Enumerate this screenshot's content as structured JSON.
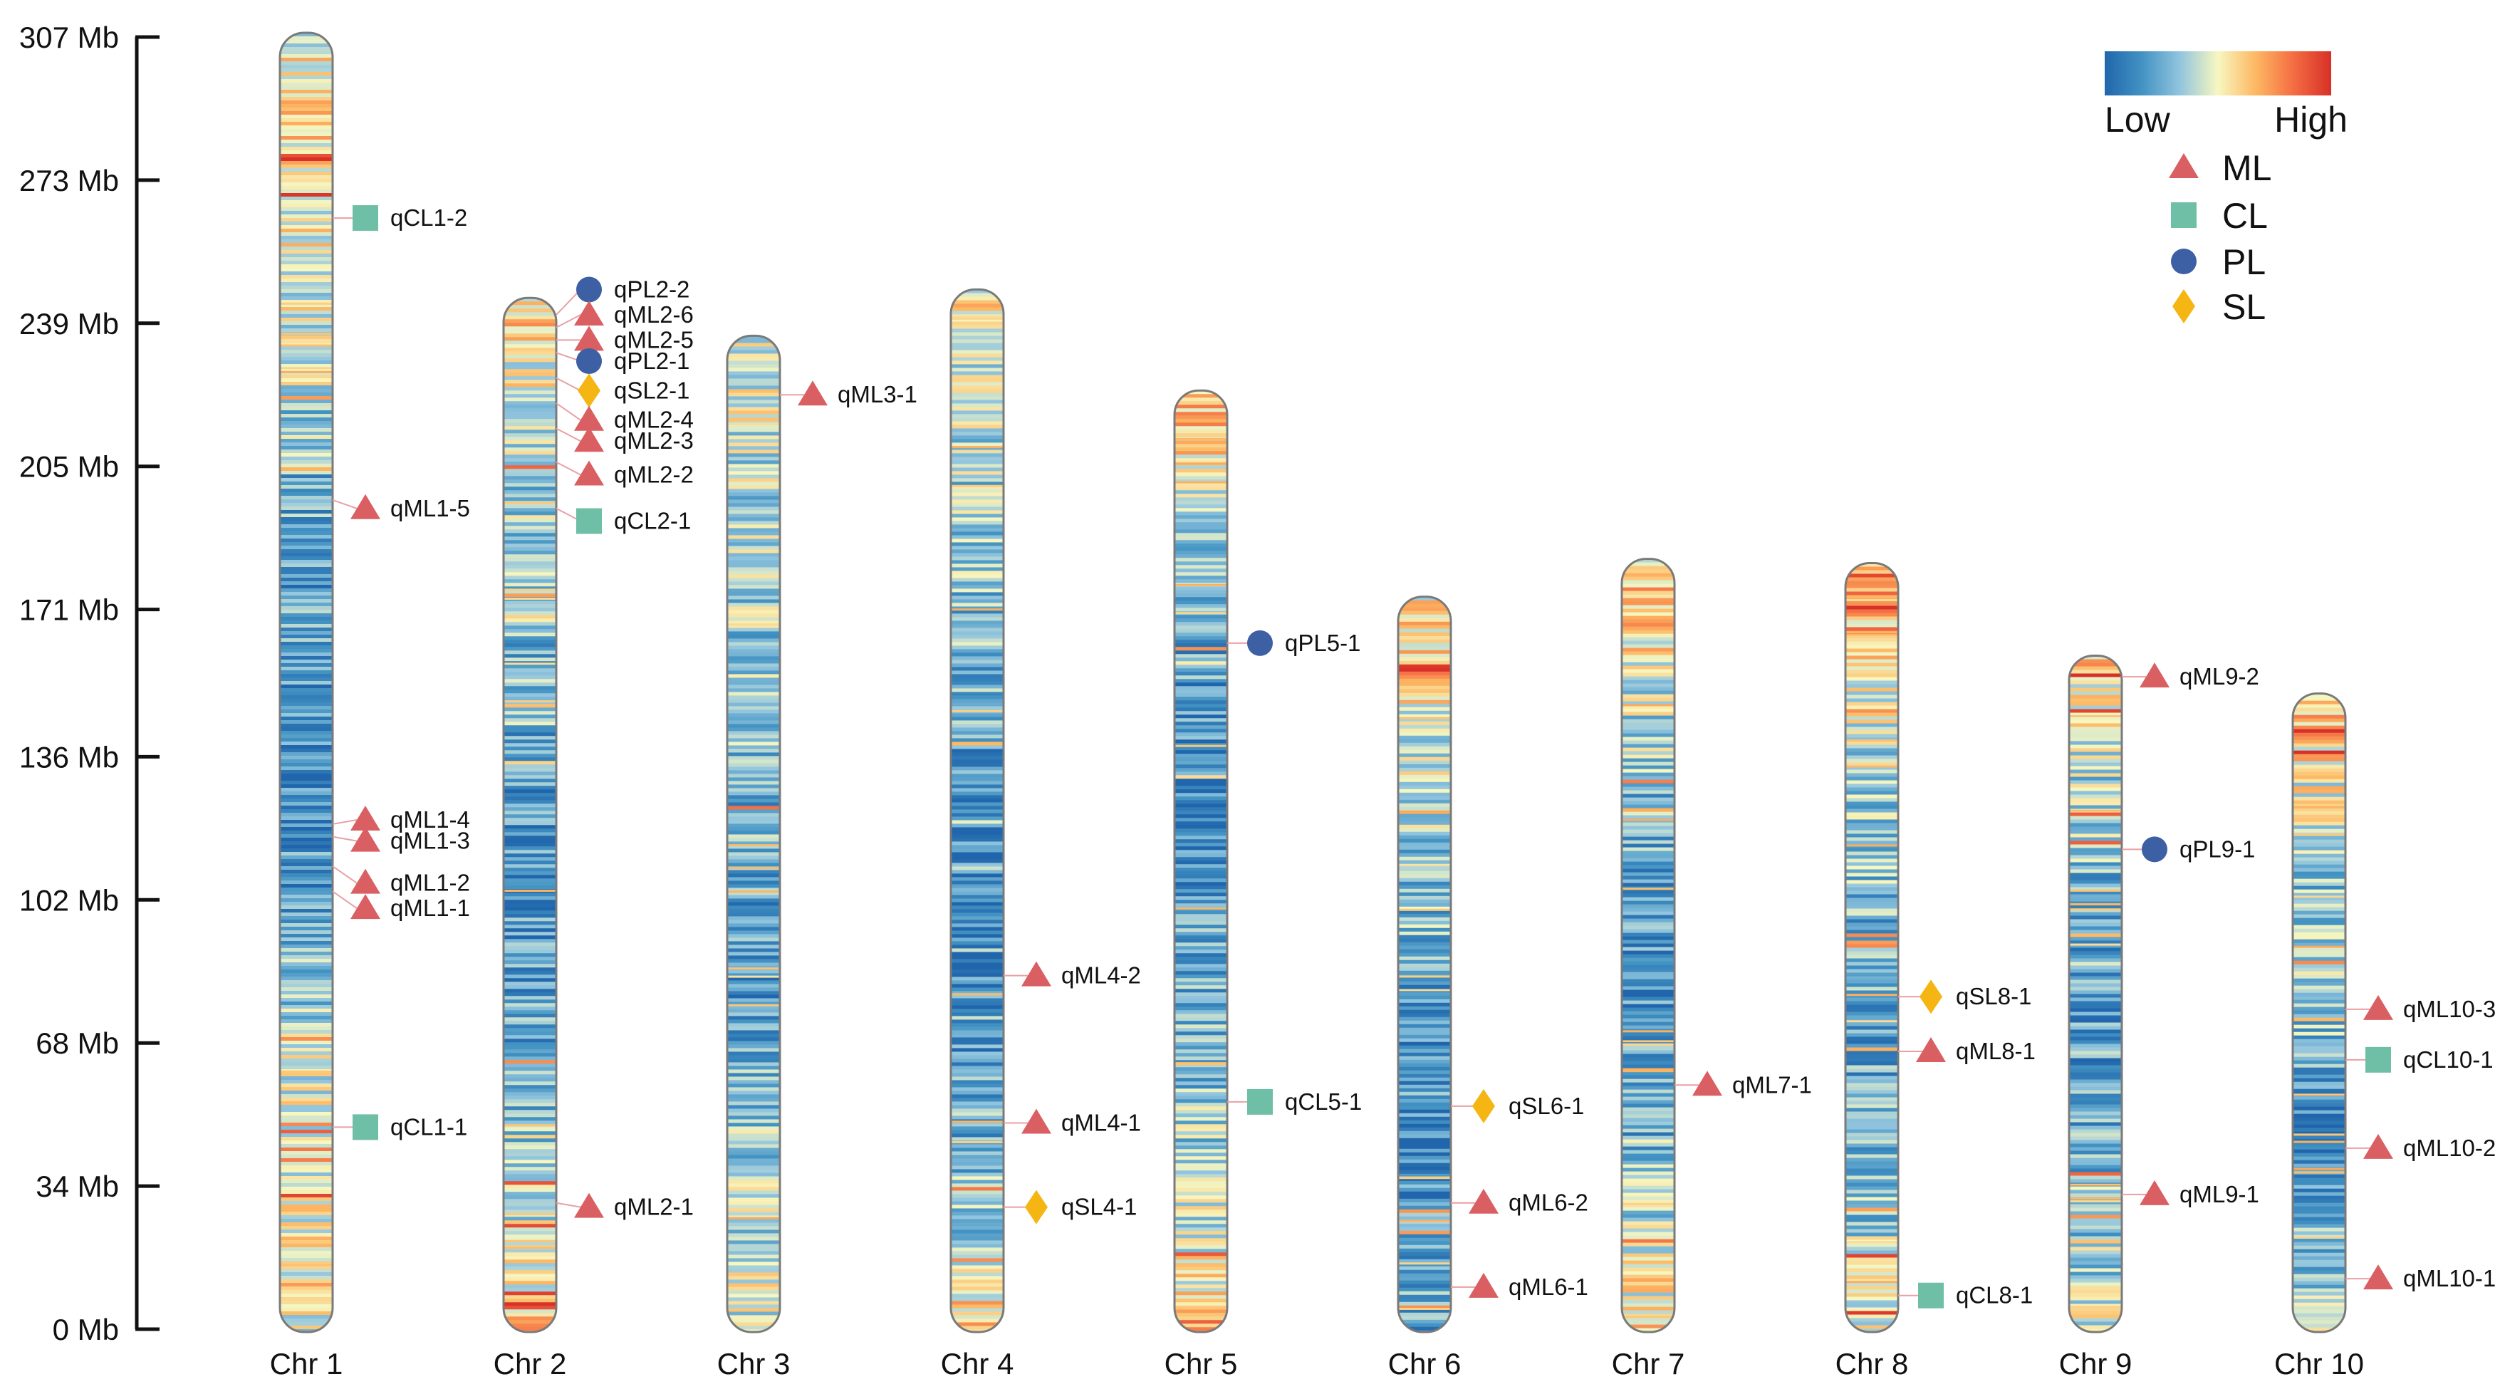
{
  "chart_data": {
    "type": "chromosome_density_map",
    "y_unit": "Mb",
    "ylim": [
      0,
      307
    ],
    "y_ticks": [
      {
        "value": 307,
        "label": "307 Mb"
      },
      {
        "value": 273,
        "label": "273 Mb"
      },
      {
        "value": 239,
        "label": "239 Mb"
      },
      {
        "value": 205,
        "label": "205 Mb"
      },
      {
        "value": 171,
        "label": "171 Mb"
      },
      {
        "value": 136,
        "label": "136 Mb"
      },
      {
        "value": 102,
        "label": "102 Mb"
      },
      {
        "value": 68,
        "label": "68 Mb"
      },
      {
        "value": 34,
        "label": "34 Mb"
      },
      {
        "value": 0,
        "label": "0 Mb"
      }
    ],
    "density_legend": {
      "low_label": "Low",
      "high_label": "High",
      "colors": [
        "#2166ac",
        "#4393c3",
        "#92c5de",
        "#f7f7c0",
        "#fdb863",
        "#f46d43",
        "#d73027"
      ]
    },
    "trait_legend": [
      {
        "trait": "ML",
        "shape": "triangle",
        "color": "#d95f63"
      },
      {
        "trait": "CL",
        "shape": "square",
        "color": "#6fbfa7"
      },
      {
        "trait": "PL",
        "shape": "circle",
        "color": "#3d5fa3"
      },
      {
        "trait": "SL",
        "shape": "diamond",
        "color": "#f5b512"
      }
    ],
    "chromosomes": [
      {
        "name": "Chr 1",
        "length": 307,
        "qtls": [
          {
            "label": "qCL1-2",
            "trait": "CL",
            "position": 264,
            "marker_y": 264
          },
          {
            "label": "qML1-5",
            "trait": "ML",
            "position": 197,
            "marker_y": 195
          },
          {
            "label": "qML1-4",
            "trait": "ML",
            "position": 120,
            "marker_y": 121
          },
          {
            "label": "qML1-3",
            "trait": "ML",
            "position": 117,
            "marker_y": 116
          },
          {
            "label": "qML1-2",
            "trait": "ML",
            "position": 110,
            "marker_y": 106
          },
          {
            "label": "qML1-1",
            "trait": "ML",
            "position": 104,
            "marker_y": 100
          },
          {
            "label": "qCL1-1",
            "trait": "CL",
            "position": 48,
            "marker_y": 48
          }
        ]
      },
      {
        "name": "Chr 2",
        "length": 244,
        "qtls": [
          {
            "label": "qPL2-2",
            "trait": "PL",
            "position": 241,
            "marker_y": 247
          },
          {
            "label": "qML2-6",
            "trait": "ML",
            "position": 238,
            "marker_y": 241
          },
          {
            "label": "qML2-5",
            "trait": "ML",
            "position": 235,
            "marker_y": 235
          },
          {
            "label": "qPL2-1",
            "trait": "PL",
            "position": 232,
            "marker_y": 230
          },
          {
            "label": "qSL2-1",
            "trait": "SL",
            "position": 226,
            "marker_y": 223
          },
          {
            "label": "qML2-4",
            "trait": "ML",
            "position": 220,
            "marker_y": 216
          },
          {
            "label": "qML2-3",
            "trait": "ML",
            "position": 214,
            "marker_y": 211
          },
          {
            "label": "qML2-2",
            "trait": "ML",
            "position": 206,
            "marker_y": 203
          },
          {
            "label": "qCL2-1",
            "trait": "CL",
            "position": 195,
            "marker_y": 192
          },
          {
            "label": "qML2-1",
            "trait": "ML",
            "position": 30,
            "marker_y": 29
          }
        ]
      },
      {
        "name": "Chr 3",
        "length": 235,
        "qtls": [
          {
            "label": "qML3-1",
            "trait": "ML",
            "position": 222,
            "marker_y": 222
          }
        ]
      },
      {
        "name": "Chr 4",
        "length": 246,
        "qtls": [
          {
            "label": "qML4-2",
            "trait": "ML",
            "position": 84,
            "marker_y": 84
          },
          {
            "label": "qML4-1",
            "trait": "ML",
            "position": 49,
            "marker_y": 49
          },
          {
            "label": "qSL4-1",
            "trait": "SL",
            "position": 29,
            "marker_y": 29
          }
        ]
      },
      {
        "name": "Chr 5",
        "length": 222,
        "qtls": [
          {
            "label": "qPL5-1",
            "trait": "PL",
            "position": 163,
            "marker_y": 163
          },
          {
            "label": "qCL5-1",
            "trait": "CL",
            "position": 54,
            "marker_y": 54
          }
        ]
      },
      {
        "name": "Chr 6",
        "length": 173,
        "qtls": [
          {
            "label": "qSL6-1",
            "trait": "SL",
            "position": 53,
            "marker_y": 53
          },
          {
            "label": "qML6-2",
            "trait": "ML",
            "position": 30,
            "marker_y": 30
          },
          {
            "label": "qML6-1",
            "trait": "ML",
            "position": 10,
            "marker_y": 10
          }
        ]
      },
      {
        "name": "Chr 7",
        "length": 182,
        "qtls": [
          {
            "label": "qML7-1",
            "trait": "ML",
            "position": 58,
            "marker_y": 58
          }
        ]
      },
      {
        "name": "Chr 8",
        "length": 181,
        "qtls": [
          {
            "label": "qSL8-1",
            "trait": "SL",
            "position": 79,
            "marker_y": 79
          },
          {
            "label": "qML8-1",
            "trait": "ML",
            "position": 66,
            "marker_y": 66
          },
          {
            "label": "qCL8-1",
            "trait": "CL",
            "position": 8,
            "marker_y": 8
          }
        ]
      },
      {
        "name": "Chr 9",
        "length": 159,
        "qtls": [
          {
            "label": "qML9-2",
            "trait": "ML",
            "position": 155,
            "marker_y": 155
          },
          {
            "label": "qPL9-1",
            "trait": "PL",
            "position": 114,
            "marker_y": 114
          },
          {
            "label": "qML9-1",
            "trait": "ML",
            "position": 32,
            "marker_y": 32
          }
        ]
      },
      {
        "name": "Chr 10",
        "length": 150,
        "qtls": [
          {
            "label": "qML10-3",
            "trait": "ML",
            "position": 76,
            "marker_y": 76
          },
          {
            "label": "qCL10-1",
            "trait": "CL",
            "position": 64,
            "marker_y": 64
          },
          {
            "label": "qML10-2",
            "trait": "ML",
            "position": 43,
            "marker_y": 43
          },
          {
            "label": "qML10-1",
            "trait": "ML",
            "position": 12,
            "marker_y": 12
          }
        ]
      }
    ]
  }
}
